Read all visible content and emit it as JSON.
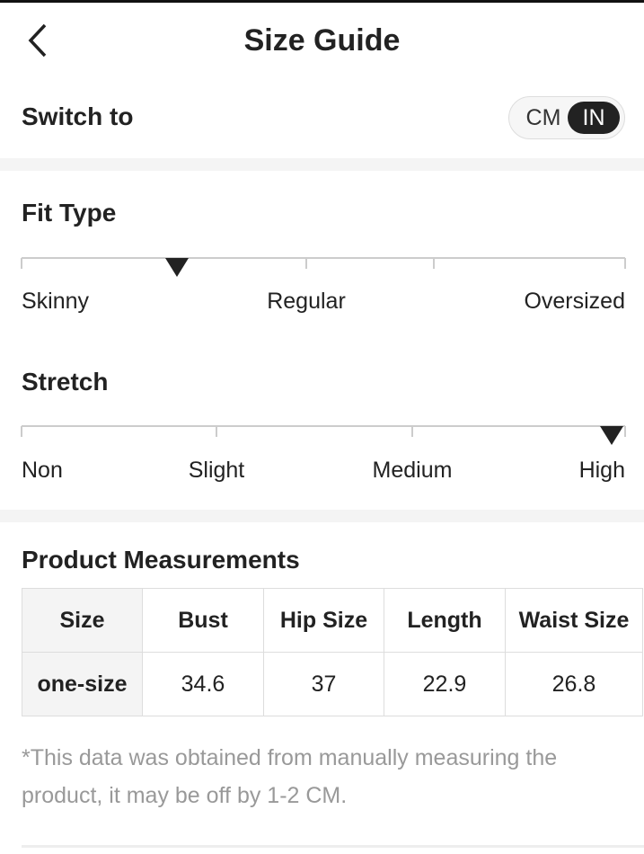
{
  "header": {
    "title": "Size Guide"
  },
  "unit_switch": {
    "label": "Switch to",
    "options": [
      "CM",
      "IN"
    ]
  },
  "fit_type": {
    "title": "Fit Type",
    "labels": [
      "Skinny",
      "Regular",
      "Oversized"
    ]
  },
  "stretch": {
    "title": "Stretch",
    "labels": [
      "Non",
      "Slight",
      "Medium",
      "High"
    ]
  },
  "measurements": {
    "title": "Product Measurements",
    "table": {
      "header": [
        "Size",
        "Bust",
        "Hip Size",
        "Length",
        "Waist Size"
      ],
      "rows": [
        [
          "one-size",
          "34.6",
          "37",
          "22.9",
          "26.8"
        ]
      ]
    }
  },
  "note": "*This data was obtained from manually measuring the product, it may be off by 1-2 CM."
}
